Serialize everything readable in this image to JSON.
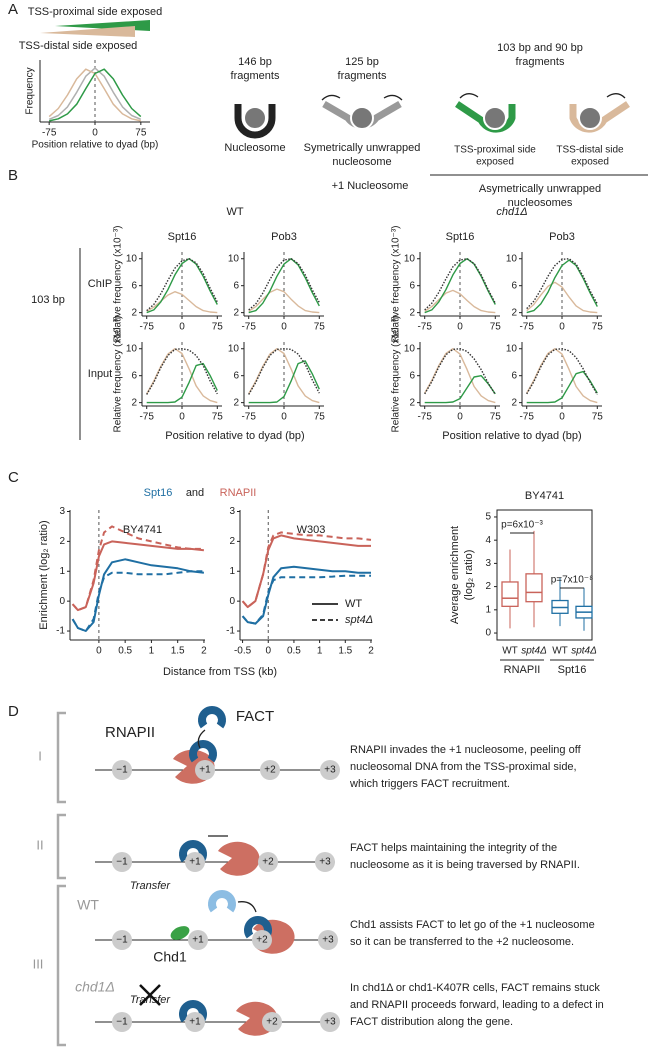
{
  "panel_labels": [
    "A",
    "B",
    "C",
    "D"
  ],
  "panel_a": {
    "proximal": "TSS-proximal side exposed",
    "distal": "TSS-distal side exposed",
    "frag146": [
      "146 bp",
      "fragments"
    ],
    "nucleosome": "Nucleosome",
    "frag125": [
      "125 bp",
      "fragments"
    ],
    "symmetric": [
      "Symetrically unwrapped",
      "nucleosome"
    ],
    "frag103": [
      "103 bp and 90 bp",
      "fragments"
    ],
    "prox_icon": [
      "TSS-proximal side",
      "exposed"
    ],
    "dist_icon": [
      "TSS-distal side",
      "exposed"
    ],
    "asym": [
      "Asymetrically unwrapped",
      "nucleosomes"
    ]
  },
  "panel_b": {
    "title": "+1 Nucleosome",
    "groups": [
      "WT",
      "chd1Δ"
    ],
    "proteins": [
      "Spt16",
      "Pob3"
    ],
    "rows": [
      "ChIP",
      "Input"
    ],
    "size": "103 bp",
    "ylabel": "Relative frequency (x10⁻³)",
    "xlabel": "Position relative to dyad (bp)"
  },
  "panel_c": {
    "title": [
      "Spt16",
      "and",
      "RNAPII"
    ],
    "ylabel": "Enrichment (log₂ ratio)",
    "xlabel": "Distance from TSS (kb)",
    "legend": [
      {
        "label": "WT",
        "dashed": false
      },
      {
        "label": "spt4Δ",
        "dashed": true
      }
    ]
  },
  "chart_data": [
    {
      "type": "line",
      "ylabel": "Frequency",
      "xlabel": "Position relative to dyad (bp)",
      "x": [
        -75,
        -60,
        -45,
        -30,
        -15,
        0,
        15,
        30,
        45,
        60,
        75
      ],
      "xlim": [
        -90,
        90
      ],
      "ylim": [
        0,
        1.15
      ],
      "xticks": [
        -75,
        0,
        75
      ],
      "series": [
        {
          "color": "#b0b0b0",
          "values": [
            0.05,
            0.12,
            0.28,
            0.55,
            0.85,
            1,
            0.85,
            0.55,
            0.28,
            0.12,
            0.05
          ]
        },
        {
          "color": "#d9b99b",
          "values": [
            0.1,
            0.25,
            0.5,
            0.8,
            0.98,
            0.9,
            0.62,
            0.33,
            0.15,
            0.06,
            0.02
          ]
        },
        {
          "color": "#2e9a47",
          "values": [
            0.02,
            0.06,
            0.15,
            0.33,
            0.62,
            0.9,
            0.98,
            0.8,
            0.5,
            0.25,
            0.1
          ]
        }
      ]
    },
    {
      "type": "line",
      "x": [
        -75,
        -60,
        -45,
        -30,
        -15,
        0,
        15,
        30,
        45,
        60,
        75
      ],
      "xlim": [
        -85,
        85
      ],
      "ylim": [
        1.5,
        11
      ],
      "xticks": [
        -75,
        0,
        75
      ],
      "yticks": [
        2,
        6,
        10
      ],
      "series": [
        {
          "color": "#d9b99b",
          "values": [
            2.2,
            2.8,
            3.7,
            4.6,
            5.1,
            4.7,
            3.8,
            2.9,
            2.3,
            2.1,
            2.0
          ]
        },
        {
          "color": "#2e9a47",
          "values": [
            2.0,
            2.4,
            3.6,
            5.4,
            7.6,
            9.3,
            10,
            9.2,
            7.4,
            5.2,
            3.2
          ]
        },
        {
          "color": "#333333",
          "dotted": true,
          "values": [
            2.3,
            3.2,
            4.8,
            6.8,
            8.6,
            9.7,
            10,
            9.4,
            7.8,
            5.6,
            3.6
          ]
        }
      ]
    },
    {
      "type": "line",
      "x": [
        -75,
        -60,
        -45,
        -30,
        -15,
        0,
        15,
        30,
        45,
        60,
        75
      ],
      "xlim": [
        -85,
        85
      ],
      "ylim": [
        1.5,
        11
      ],
      "xticks": [
        -75,
        0,
        75
      ],
      "yticks": [
        2,
        6,
        10
      ],
      "series": [
        {
          "color": "#d9b99b",
          "values": [
            2.2,
            2.9,
            4.0,
            5.0,
            5.5,
            5.1,
            4.0,
            3.0,
            2.3,
            2.1,
            2.0
          ]
        },
        {
          "color": "#2e9a47",
          "values": [
            2.0,
            2.3,
            3.4,
            5.2,
            7.4,
            9.2,
            10,
            9.1,
            7.2,
            5.0,
            3.0
          ]
        },
        {
          "color": "#333333",
          "dotted": true,
          "values": [
            2.4,
            3.3,
            4.9,
            6.9,
            8.7,
            9.8,
            10,
            9.3,
            7.6,
            5.4,
            3.5
          ]
        }
      ]
    },
    {
      "type": "line",
      "x": [
        -75,
        -60,
        -45,
        -30,
        -15,
        0,
        15,
        30,
        45,
        60,
        75
      ],
      "xlim": [
        -85,
        85
      ],
      "ylim": [
        1.5,
        11
      ],
      "xticks": [
        -75,
        0,
        75
      ],
      "yticks": [
        2,
        6,
        10
      ],
      "series": [
        {
          "color": "#d9b99b",
          "values": [
            2.2,
            2.9,
            3.9,
            4.9,
            5.3,
            4.8,
            3.8,
            2.9,
            2.3,
            2.1,
            2.0
          ]
        },
        {
          "color": "#2e9a47",
          "values": [
            2.0,
            2.4,
            3.6,
            5.4,
            7.6,
            9.3,
            10,
            9.2,
            7.4,
            5.2,
            3.2
          ]
        },
        {
          "color": "#333333",
          "dotted": true,
          "values": [
            2.4,
            3.4,
            5.0,
            7.0,
            8.8,
            9.8,
            10,
            9.3,
            7.6,
            5.4,
            3.4
          ]
        }
      ]
    },
    {
      "type": "line",
      "x": [
        -75,
        -60,
        -45,
        -30,
        -15,
        0,
        15,
        30,
        45,
        60,
        75
      ],
      "xlim": [
        -85,
        85
      ],
      "ylim": [
        1.5,
        11
      ],
      "xticks": [
        -75,
        0,
        75
      ],
      "yticks": [
        2,
        6,
        10
      ],
      "series": [
        {
          "color": "#d9b99b",
          "values": [
            2.3,
            3.2,
            4.6,
            5.9,
            6.5,
            5.8,
            4.3,
            3.0,
            2.3,
            2.1,
            2.0
          ]
        },
        {
          "color": "#2e9a47",
          "values": [
            2.0,
            2.3,
            3.3,
            5.0,
            7.2,
            9.0,
            9.8,
            9.0,
            7.1,
            4.9,
            2.9
          ]
        },
        {
          "color": "#333333",
          "dotted": true,
          "values": [
            2.6,
            3.7,
            5.4,
            7.4,
            9.0,
            9.9,
            10,
            9.2,
            7.4,
            5.2,
            3.3
          ]
        }
      ]
    },
    {
      "type": "line",
      "x": [
        -75,
        -60,
        -45,
        -30,
        -15,
        0,
        15,
        30,
        45,
        60,
        75
      ],
      "xlim": [
        -85,
        85
      ],
      "ylim": [
        1.5,
        11
      ],
      "xticks": [
        -75,
        0,
        75
      ],
      "yticks": [
        2,
        6,
        10
      ],
      "series": [
        {
          "color": "#d9b99b",
          "values": [
            3.3,
            5.2,
            7.4,
            9.2,
            10,
            9.3,
            7.0,
            4.5,
            3.0,
            2.3,
            2.0
          ]
        },
        {
          "color": "#2e9a47",
          "values": [
            2,
            2,
            2,
            2,
            2.1,
            2.8,
            5.0,
            7.5,
            7.8,
            6.0,
            3.8
          ]
        },
        {
          "color": "#333333",
          "dotted": true,
          "values": [
            3.2,
            5.0,
            7.2,
            9.0,
            9.9,
            10,
            9.8,
            9.0,
            7.5,
            5.2,
            3.3
          ]
        }
      ]
    },
    {
      "type": "line",
      "x": [
        -75,
        -60,
        -45,
        -30,
        -15,
        0,
        15,
        30,
        45,
        60,
        75
      ],
      "xlim": [
        -85,
        85
      ],
      "ylim": [
        1.5,
        11
      ],
      "xticks": [
        -75,
        0,
        75
      ],
      "yticks": [
        2,
        6,
        10
      ],
      "series": [
        {
          "color": "#d9b99b",
          "values": [
            3.3,
            5.2,
            7.4,
            9.2,
            10,
            9.3,
            7.0,
            4.5,
            3.0,
            2.3,
            2.0
          ]
        },
        {
          "color": "#2e9a47",
          "values": [
            2,
            2,
            2,
            2,
            2.1,
            2.9,
            5.2,
            7.8,
            8.2,
            6.3,
            4.0
          ]
        },
        {
          "color": "#333333",
          "dotted": true,
          "values": [
            3.2,
            5.0,
            7.2,
            9.0,
            9.9,
            10,
            9.9,
            9.2,
            7.7,
            5.4,
            3.4
          ]
        }
      ]
    },
    {
      "type": "line",
      "x": [
        -75,
        -60,
        -45,
        -30,
        -15,
        0,
        15,
        30,
        45,
        60,
        75
      ],
      "xlim": [
        -85,
        85
      ],
      "ylim": [
        1.5,
        11
      ],
      "xticks": [
        -75,
        0,
        75
      ],
      "yticks": [
        2,
        6,
        10
      ],
      "series": [
        {
          "color": "#d9b99b",
          "values": [
            3.4,
            5.3,
            7.5,
            9.3,
            10,
            9.2,
            6.9,
            4.4,
            3.0,
            2.3,
            2.0
          ]
        },
        {
          "color": "#2e9a47",
          "values": [
            2,
            2,
            2,
            2,
            2.1,
            2.6,
            4.2,
            5.8,
            6.0,
            4.8,
            3.3
          ]
        },
        {
          "color": "#333333",
          "dotted": true,
          "values": [
            3.3,
            5.1,
            7.3,
            9.1,
            9.9,
            10,
            9.6,
            8.5,
            6.9,
            4.9,
            3.2
          ]
        }
      ]
    },
    {
      "type": "line",
      "x": [
        -75,
        -60,
        -45,
        -30,
        -15,
        0,
        15,
        30,
        45,
        60,
        75
      ],
      "xlim": [
        -85,
        85
      ],
      "ylim": [
        1.5,
        11
      ],
      "xticks": [
        -75,
        0,
        75
      ],
      "yticks": [
        2,
        6,
        10
      ],
      "series": [
        {
          "color": "#d9b99b",
          "values": [
            3.4,
            5.3,
            7.5,
            9.3,
            10,
            9.2,
            6.9,
            4.4,
            3.0,
            2.3,
            2.0
          ]
        },
        {
          "color": "#2e9a47",
          "values": [
            2,
            2,
            2,
            2,
            2.1,
            2.7,
            4.5,
            6.3,
            6.6,
            5.2,
            3.4
          ]
        },
        {
          "color": "#333333",
          "dotted": true,
          "values": [
            3.3,
            5.1,
            7.3,
            9.1,
            9.9,
            10,
            9.7,
            8.7,
            7.0,
            5.0,
            3.2
          ]
        }
      ]
    },
    {
      "type": "line",
      "title": "BY4741",
      "x": [
        -0.5,
        -0.4,
        -0.25,
        -0.1,
        0,
        0.1,
        0.25,
        0.5,
        0.75,
        1,
        1.25,
        1.5,
        1.75,
        2
      ],
      "xlim": [
        -0.55,
        2.02
      ],
      "ylim": [
        -1.3,
        3.05
      ],
      "xticks": [
        0,
        0.5,
        1,
        1.5,
        2
      ],
      "yticks": [
        -1,
        0,
        1,
        2,
        3
      ],
      "series": [
        {
          "color": "#c9635a",
          "values": [
            -0.1,
            -0.3,
            -0.2,
            0.6,
            1.5,
            1.9,
            2.0,
            1.95,
            1.9,
            1.85,
            1.8,
            1.75,
            1.75,
            1.7
          ]
        },
        {
          "color": "#c9635a",
          "dashed": true,
          "values": [
            -0.1,
            -0.3,
            -0.2,
            0.7,
            1.7,
            2.3,
            2.5,
            2.3,
            2.1,
            2.0,
            1.9,
            1.8,
            1.75,
            1.75
          ]
        },
        {
          "color": "#1f6fa3",
          "values": [
            -0.6,
            -0.9,
            -1.0,
            -0.7,
            0.2,
            0.9,
            1.3,
            1.4,
            1.3,
            1.2,
            1.15,
            1.1,
            1.0,
            0.95
          ]
        },
        {
          "color": "#1f6fa3",
          "dashed": true,
          "values": [
            -0.6,
            -0.9,
            -1.0,
            -0.6,
            0.3,
            0.8,
            0.95,
            0.95,
            0.9,
            0.9,
            0.9,
            0.95,
            1.0,
            1.0
          ]
        }
      ]
    },
    {
      "type": "line",
      "title": "W303",
      "x": [
        -0.5,
        -0.4,
        -0.25,
        -0.1,
        0,
        0.1,
        0.25,
        0.5,
        0.75,
        1,
        1.25,
        1.5,
        1.75,
        2
      ],
      "xlim": [
        -0.55,
        2.02
      ],
      "ylim": [
        -1.3,
        3.05
      ],
      "xticks": [
        -0.5,
        0,
        0.5,
        1,
        1.5,
        2
      ],
      "yticks": [
        -1,
        0,
        1,
        2,
        3
      ],
      "series": [
        {
          "color": "#c9635a",
          "values": [
            0.0,
            -0.2,
            0.0,
            0.9,
            1.7,
            2.1,
            2.2,
            2.1,
            2.05,
            2.0,
            1.95,
            1.9,
            1.85,
            1.85
          ]
        },
        {
          "color": "#c9635a",
          "dashed": true,
          "values": [
            0.0,
            -0.2,
            0.0,
            0.9,
            1.8,
            2.2,
            2.3,
            2.25,
            2.2,
            2.2,
            2.15,
            2.1,
            2.1,
            2.05
          ]
        },
        {
          "color": "#1f6fa3",
          "values": [
            -0.5,
            -0.7,
            -0.75,
            -0.5,
            0.2,
            0.8,
            1.1,
            1.15,
            1.1,
            1.05,
            1.0,
            1.0,
            0.95,
            0.95
          ]
        },
        {
          "color": "#1f6fa3",
          "dashed": true,
          "values": [
            -0.5,
            -0.7,
            -0.75,
            -0.45,
            0.3,
            0.7,
            0.8,
            0.8,
            0.8,
            0.8,
            0.82,
            0.85,
            0.85,
            0.85
          ]
        }
      ]
    },
    {
      "type": "box",
      "title": "BY4741",
      "ylabel": [
        "Average enrichment",
        "(log₂ ratio)"
      ],
      "categories": [
        "WT",
        "spt4Δ",
        "WT",
        "spt4Δ"
      ],
      "groups": [
        "RNAPII",
        "Spt16"
      ],
      "ylim": [
        -0.3,
        5.3
      ],
      "yticks": [
        0,
        1,
        2,
        3,
        4,
        5
      ],
      "annotations": [
        "p=6x10⁻³",
        "p=7x10⁻⁸"
      ],
      "boxes": [
        {
          "color": "#c9635a",
          "low": 0.2,
          "q1": 1.15,
          "median": 1.5,
          "q3": 2.2,
          "high": 3.6
        },
        {
          "color": "#c9635a",
          "low": 0.25,
          "q1": 1.35,
          "median": 1.75,
          "q3": 2.55,
          "high": 4.4
        },
        {
          "color": "#1f6fa3",
          "low": 0.3,
          "q1": 0.85,
          "median": 1.1,
          "q3": 1.4,
          "high": 2.4
        },
        {
          "color": "#1f6fa3",
          "low": 0.1,
          "q1": 0.65,
          "median": 0.9,
          "q3": 1.15,
          "high": 1.95
        }
      ]
    }
  ],
  "panel_d": {
    "stages": [
      "I",
      "II",
      "III"
    ],
    "nucleosomes": [
      "−1",
      "+1",
      "+2",
      "+3"
    ],
    "rnapii": "RNAPII",
    "fact": "FACT",
    "wt": "WT",
    "mutant": "chd1Δ",
    "transfer": "Transfer",
    "chd1": "Chd1",
    "texts": [
      [
        "RNAPII invades the +1 nucleosome, peeling off",
        "nucleosomal DNA from the TSS-proximal side,",
        "which triggers FACT recruitment."
      ],
      [
        "FACT helps maintaining the integrity of the",
        "nucleosome as it is being traversed by RNAPII."
      ],
      [
        "Chd1 assists FACT to let go of the +1 nucleosome",
        "so it can be transferred to the +2 nucleosome."
      ],
      [
        "In chd1Δ or chd1-K407R cells, FACT remains stuck",
        "and RNAPII proceeds forward, leading to a defect in",
        "FACT distribution along the gene."
      ]
    ]
  }
}
